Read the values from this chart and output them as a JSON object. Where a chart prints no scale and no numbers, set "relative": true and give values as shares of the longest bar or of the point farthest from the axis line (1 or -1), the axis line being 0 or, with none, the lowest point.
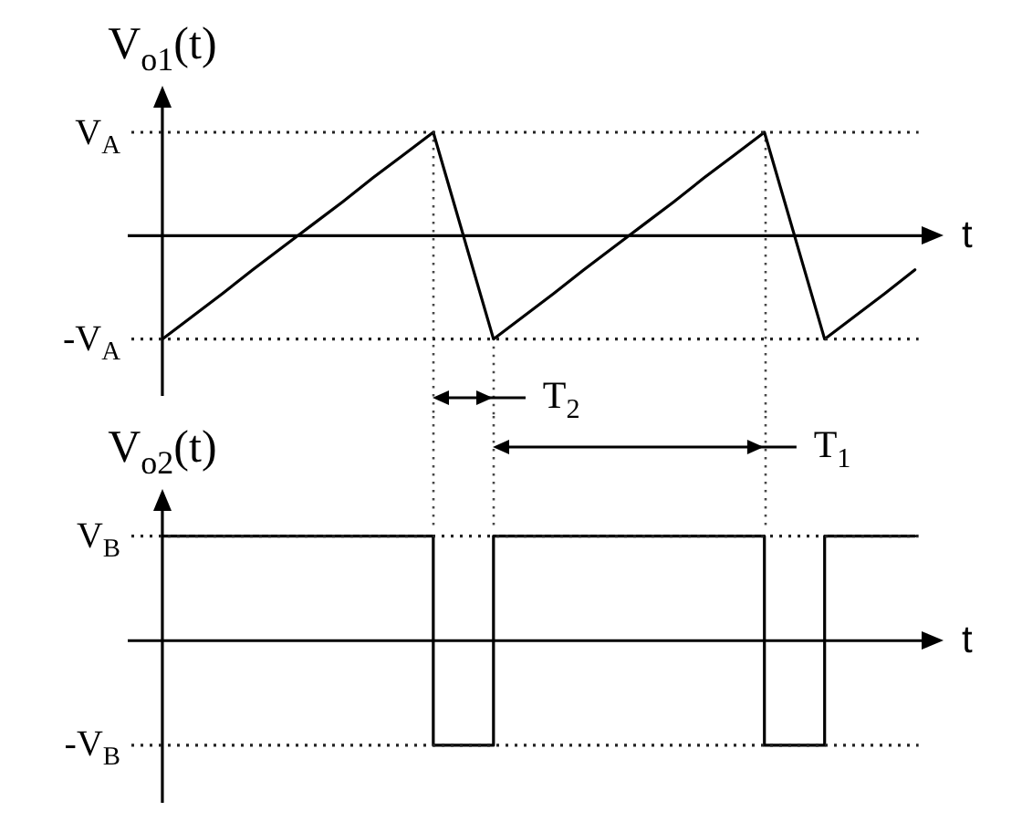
{
  "chart_data": [
    {
      "type": "line",
      "relative": true,
      "ylabel": "V$_{o1}$(t)",
      "xlabel": "t",
      "categories": [
        null,
        null,
        null,
        null,
        null,
        null,
        null,
        null,
        null,
        null,
        null,
        null,
        null,
        null,
        null,
        null,
        null,
        null,
        null,
        null,
        null,
        null,
        null,
        null,
        null,
        null
      ],
      "values": [
        -1,
        -0.78,
        -0.56,
        -0.33,
        -0.11,
        0.11,
        0.33,
        0.56,
        0.78,
        1,
        0,
        -1,
        -0.78,
        -0.56,
        -0.33,
        -0.11,
        0.11,
        0.33,
        0.56,
        0.78,
        1,
        0,
        -1,
        -0.78,
        -0.56,
        -0.33
      ],
      "color": "#000000",
      "marker": "none",
      "ref_lines": [
        {
          "axis": "y",
          "value": 1,
          "label": "V$_{A}$",
          "line_style": "dotted"
        },
        {
          "axis": "y",
          "value": -1,
          "label": "-V$_{A}$",
          "line_style": "dotted"
        }
      ],
      "annotations": [
        "T$_{2}$",
        "T$_{1}$"
      ]
    },
    {
      "type": "step",
      "relative": true,
      "ylabel": "V$_{o2}$(t)",
      "xlabel": "t",
      "categories": [
        null,
        null,
        null,
        null,
        null,
        null,
        null,
        null,
        null,
        null,
        null,
        null,
        null,
        null,
        null,
        null,
        null,
        null,
        null,
        null,
        null,
        null,
        null,
        null,
        null,
        null
      ],
      "values": [
        1,
        1,
        1,
        1,
        1,
        1,
        1,
        1,
        1,
        -1,
        -1,
        1,
        1,
        1,
        1,
        1,
        1,
        1,
        1,
        1,
        -1,
        -1,
        1,
        1,
        1,
        1
      ],
      "color": "#000000",
      "marker": "none",
      "ref_lines": [
        {
          "axis": "y",
          "value": 1,
          "label": "V$_{B}$",
          "line_style": "dotted"
        },
        {
          "axis": "y",
          "value": -1,
          "label": "-V$_{B}$",
          "line_style": "dotted"
        }
      ]
    }
  ]
}
